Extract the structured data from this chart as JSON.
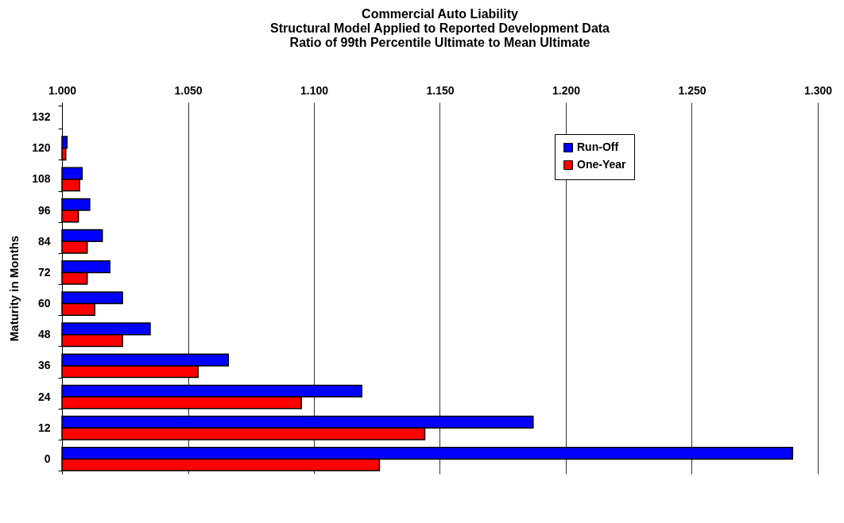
{
  "chart_data": {
    "type": "bar",
    "orientation": "horizontal",
    "title": "Commercial Auto Liability\nStructural Model Applied to Reported Development Data\nRatio of 99th Percentile Ultimate to Mean Ultimate",
    "ylabel": "Maturity in Months",
    "categories": [
      "132",
      "120",
      "108",
      "96",
      "84",
      "72",
      "60",
      "48",
      "36",
      "24",
      "12",
      "0"
    ],
    "series": [
      {
        "name": "Run-Off",
        "color": "#0000ff",
        "values": [
          null,
          1.002,
          1.008,
          1.011,
          1.016,
          1.019,
          1.024,
          1.035,
          1.066,
          1.119,
          1.187,
          1.29
        ]
      },
      {
        "name": "One-Year",
        "color": "#ff0000",
        "values": [
          null,
          1.0015,
          1.007,
          1.0065,
          1.01,
          1.01,
          1.013,
          1.024,
          1.054,
          1.095,
          1.144,
          1.126
        ]
      }
    ],
    "xlim": [
      1.0,
      1.3
    ],
    "xticks": [
      {
        "value": 1.0,
        "label": "1.000"
      },
      {
        "value": 1.05,
        "label": "1.050"
      },
      {
        "value": 1.1,
        "label": "1.100"
      },
      {
        "value": 1.15,
        "label": "1.150"
      },
      {
        "value": 1.2,
        "label": "1.200"
      },
      {
        "value": 1.25,
        "label": "1.250"
      },
      {
        "value": 1.3,
        "label": "1.300"
      }
    ],
    "grid": "x",
    "legend": "top right"
  }
}
